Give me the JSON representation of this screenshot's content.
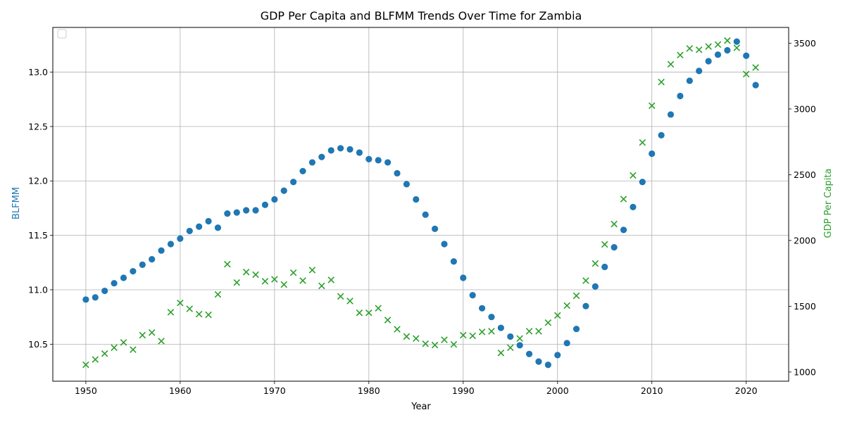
{
  "chart_data": {
    "type": "scatter",
    "title": "GDP Per Capita and BLFMM Trends Over Time for Zambia",
    "xlabel": "Year",
    "ylabel_left": "BLFMM",
    "ylabel_right": "GDP Per Capita",
    "xlim": [
      1946.5,
      2024.5
    ],
    "ylim_left": [
      10.16,
      13.41
    ],
    "ylim_right": [
      930,
      3620
    ],
    "x_ticks": [
      1950,
      1960,
      1970,
      1980,
      1990,
      2000,
      2010,
      2020
    ],
    "y_ticks_left": [
      10.5,
      11.0,
      11.5,
      12.0,
      12.5,
      13.0
    ],
    "y_ticks_right": [
      1000,
      1500,
      2000,
      2500,
      3000,
      3500
    ],
    "grid": true,
    "legend": {
      "placement": "top-left",
      "entries": []
    },
    "colors": {
      "left": "#1f77b4",
      "right": "#2ca02c"
    },
    "x": [
      1950,
      1951,
      1952,
      1953,
      1954,
      1955,
      1956,
      1957,
      1958,
      1959,
      1960,
      1961,
      1962,
      1963,
      1964,
      1965,
      1966,
      1967,
      1968,
      1969,
      1970,
      1971,
      1972,
      1973,
      1974,
      1975,
      1976,
      1977,
      1978,
      1979,
      1980,
      1981,
      1982,
      1983,
      1984,
      1985,
      1986,
      1987,
      1988,
      1989,
      1990,
      1991,
      1992,
      1993,
      1994,
      1995,
      1996,
      1997,
      1998,
      1999,
      2000,
      2001,
      2002,
      2003,
      2004,
      2005,
      2006,
      2007,
      2008,
      2009,
      2010,
      2011,
      2012,
      2013,
      2014,
      2015,
      2016,
      2017,
      2018,
      2019,
      2020,
      2021
    ],
    "series": [
      {
        "name": "BLFMM",
        "axis": "left",
        "marker": "circle",
        "values": [
          10.91,
          10.93,
          10.99,
          11.06,
          11.11,
          11.17,
          11.23,
          11.28,
          11.36,
          11.42,
          11.47,
          11.54,
          11.58,
          11.63,
          11.57,
          11.7,
          11.71,
          11.73,
          11.73,
          11.78,
          11.83,
          11.91,
          11.99,
          12.09,
          12.17,
          12.22,
          12.28,
          12.3,
          12.29,
          12.26,
          12.2,
          12.19,
          12.17,
          12.07,
          11.97,
          11.83,
          11.69,
          11.56,
          11.42,
          11.26,
          11.11,
          10.95,
          10.83,
          10.75,
          10.65,
          10.57,
          10.49,
          10.41,
          10.34,
          10.31,
          10.4,
          10.51,
          10.64,
          10.85,
          11.03,
          11.21,
          11.39,
          11.55,
          11.76,
          11.99,
          12.25,
          12.42,
          12.61,
          12.78,
          12.92,
          13.01,
          13.1,
          13.16,
          13.2,
          13.28,
          13.15,
          12.88
        ]
      },
      {
        "name": "GDP Per Capita",
        "axis": "right",
        "marker": "x",
        "values": [
          1055,
          1095,
          1140,
          1185,
          1225,
          1170,
          1280,
          1300,
          1235,
          1455,
          1525,
          1480,
          1440,
          1435,
          1590,
          1820,
          1680,
          1760,
          1740,
          1690,
          1705,
          1665,
          1755,
          1695,
          1775,
          1655,
          1700,
          1575,
          1540,
          1450,
          1450,
          1485,
          1395,
          1325,
          1270,
          1255,
          1215,
          1205,
          1245,
          1210,
          1280,
          1275,
          1305,
          1310,
          1145,
          1185,
          1255,
          1310,
          1310,
          1375,
          1430,
          1505,
          1580,
          1695,
          1825,
          1970,
          2125,
          2315,
          2495,
          2745,
          3025,
          3205,
          3340,
          3410,
          3460,
          3450,
          3475,
          3490,
          3520,
          3465,
          3265,
          3315
        ]
      }
    ]
  }
}
